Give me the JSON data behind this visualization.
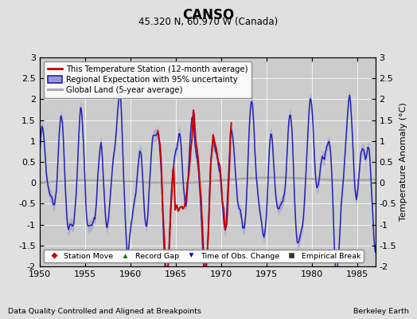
{
  "title": "CANSO",
  "subtitle": "45.320 N, 60.970 W (Canada)",
  "ylabel": "Temperature Anomaly (°C)",
  "footer_left": "Data Quality Controlled and Aligned at Breakpoints",
  "footer_right": "Berkeley Earth",
  "xlim": [
    1950,
    1987
  ],
  "ylim": [
    -2,
    3
  ],
  "yticks": [
    -2,
    -1.5,
    -1,
    -0.5,
    0,
    0.5,
    1,
    1.5,
    2,
    2.5,
    3
  ],
  "xticks": [
    1950,
    1955,
    1960,
    1965,
    1970,
    1975,
    1980,
    1985
  ],
  "bg_color": "#e0e0e0",
  "plot_bg_color": "#cccccc",
  "regional_color": "#2222bb",
  "regional_uncertainty_color": "#9999cc",
  "station_color": "#cc0000",
  "global_color": "#aaaaaa",
  "legend1_items": [
    {
      "label": "This Temperature Station (12-month average)",
      "color": "#cc0000",
      "lw": 1.8
    },
    {
      "label": "Regional Expectation with 95% uncertainty",
      "color": "#2222bb",
      "lw": 1.5
    },
    {
      "label": "Global Land (5-year average)",
      "color": "#aaaaaa",
      "lw": 2.2
    }
  ],
  "legend2_items": [
    {
      "label": "Station Move",
      "marker": "D",
      "color": "#cc0000"
    },
    {
      "label": "Record Gap",
      "marker": "^",
      "color": "#007700"
    },
    {
      "label": "Time of Obs. Change",
      "marker": "v",
      "color": "#0000cc"
    },
    {
      "label": "Empirical Break",
      "marker": "s",
      "color": "#333333"
    }
  ]
}
